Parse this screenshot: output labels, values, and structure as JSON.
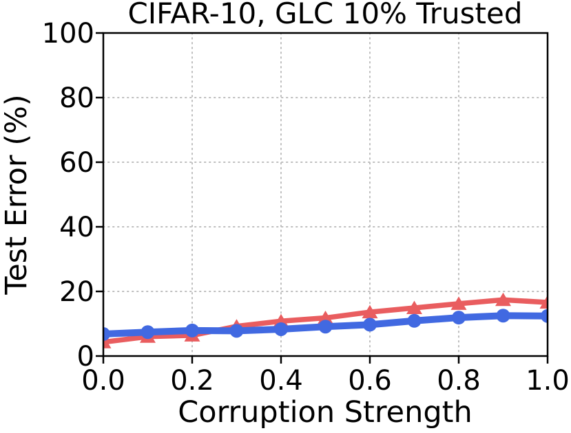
{
  "chart_data": {
    "type": "line",
    "title": "CIFAR-10, GLC 10% Trusted",
    "xlabel": "Corruption Strength",
    "ylabel": "Test Error (%)",
    "xlim": [
      0.0,
      1.0
    ],
    "ylim": [
      0,
      100
    ],
    "xticks": [
      0.0,
      0.2,
      0.4,
      0.6,
      0.8,
      1.0
    ],
    "xtick_labels": [
      "0.0",
      "0.2",
      "0.4",
      "0.6",
      "0.8",
      "1.0"
    ],
    "yticks": [
      0,
      20,
      40,
      60,
      80,
      100
    ],
    "ytick_labels": [
      "0",
      "20",
      "40",
      "60",
      "80",
      "100"
    ],
    "grid": {
      "visible": true,
      "style": "dotted",
      "color": "#bdbdbd"
    },
    "legend": null,
    "background": "#ffffff",
    "axis_color": "#000000",
    "x": [
      0.0,
      0.1,
      0.2,
      0.3,
      0.4,
      0.5,
      0.6,
      0.7,
      0.8,
      0.9,
      1.0
    ],
    "series": [
      {
        "name": "red-triangle-series",
        "color": "#e95d5f",
        "marker": "triangle-up",
        "line_width": 7.5,
        "values": [
          4.3,
          6.0,
          6.4,
          9.2,
          10.8,
          11.8,
          13.6,
          14.9,
          16.2,
          17.4,
          16.6
        ]
      },
      {
        "name": "blue-circle-series",
        "color": "#4169e1",
        "marker": "circle",
        "line_width": 10,
        "values": [
          6.8,
          7.4,
          7.9,
          7.8,
          8.3,
          9.1,
          9.7,
          10.9,
          11.9,
          12.5,
          12.4
        ]
      }
    ]
  }
}
